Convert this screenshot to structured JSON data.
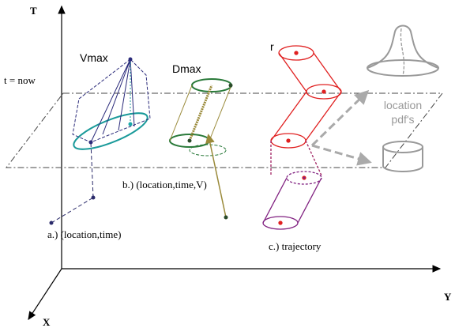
{
  "axes": {
    "t": "T",
    "y": "Y",
    "x": "X"
  },
  "time_plane_label": "t = now",
  "labels": {
    "vmax": "Vmax",
    "dmax": "Dmax",
    "r": "r",
    "pdf_line1": "location",
    "pdf_line2": "pdf's"
  },
  "captions": {
    "a": "a.) (location,time)",
    "b": "b.) (location,time,V)",
    "c": "c.) trajectory"
  }
}
